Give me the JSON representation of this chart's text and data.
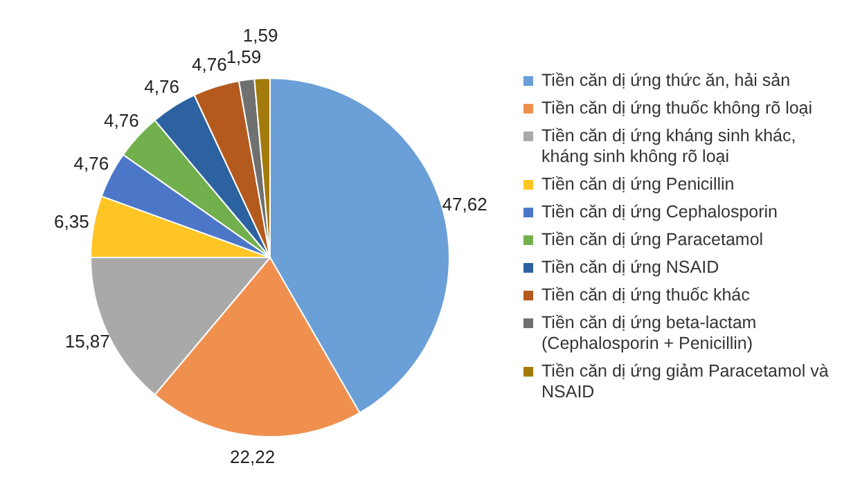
{
  "chart_data": {
    "type": "pie",
    "categories": [
      "Tiền căn dị ứng thức ăn, hải sản",
      "Tiền căn dị ứng thuốc không rõ loại",
      "Tiền căn dị ứng kháng sinh khác, kháng sinh không rõ loại",
      "Tiền căn dị ứng Penicillin",
      "Tiền căn dị ứng Cephalosporin",
      "Tiền căn dị ứng Paracetamol",
      "Tiền căn dị ứng NSAID",
      "Tiền căn dị ứng thuốc khác",
      "Tiền căn dị ứng beta-lactam (Cephalosporin + Penicillin)",
      "Tiền căn dị ứng giảm Paracetamol và NSAID"
    ],
    "values": [
      47.62,
      22.22,
      15.87,
      6.35,
      4.76,
      4.76,
      4.76,
      4.76,
      1.59,
      1.59
    ],
    "value_labels": [
      "47,62",
      "22,22",
      "15,87",
      "6,35",
      "4,76",
      "4,76",
      "4,76",
      "4,76",
      "1,59",
      "1,59"
    ],
    "colors": [
      "#6a9fd8",
      "#f0904f",
      "#a9a9a9",
      "#ffc525",
      "#4c77c8",
      "#72b04e",
      "#2c62a0",
      "#b55a1e",
      "#707070",
      "#a37b0c"
    ],
    "legend": "right"
  }
}
